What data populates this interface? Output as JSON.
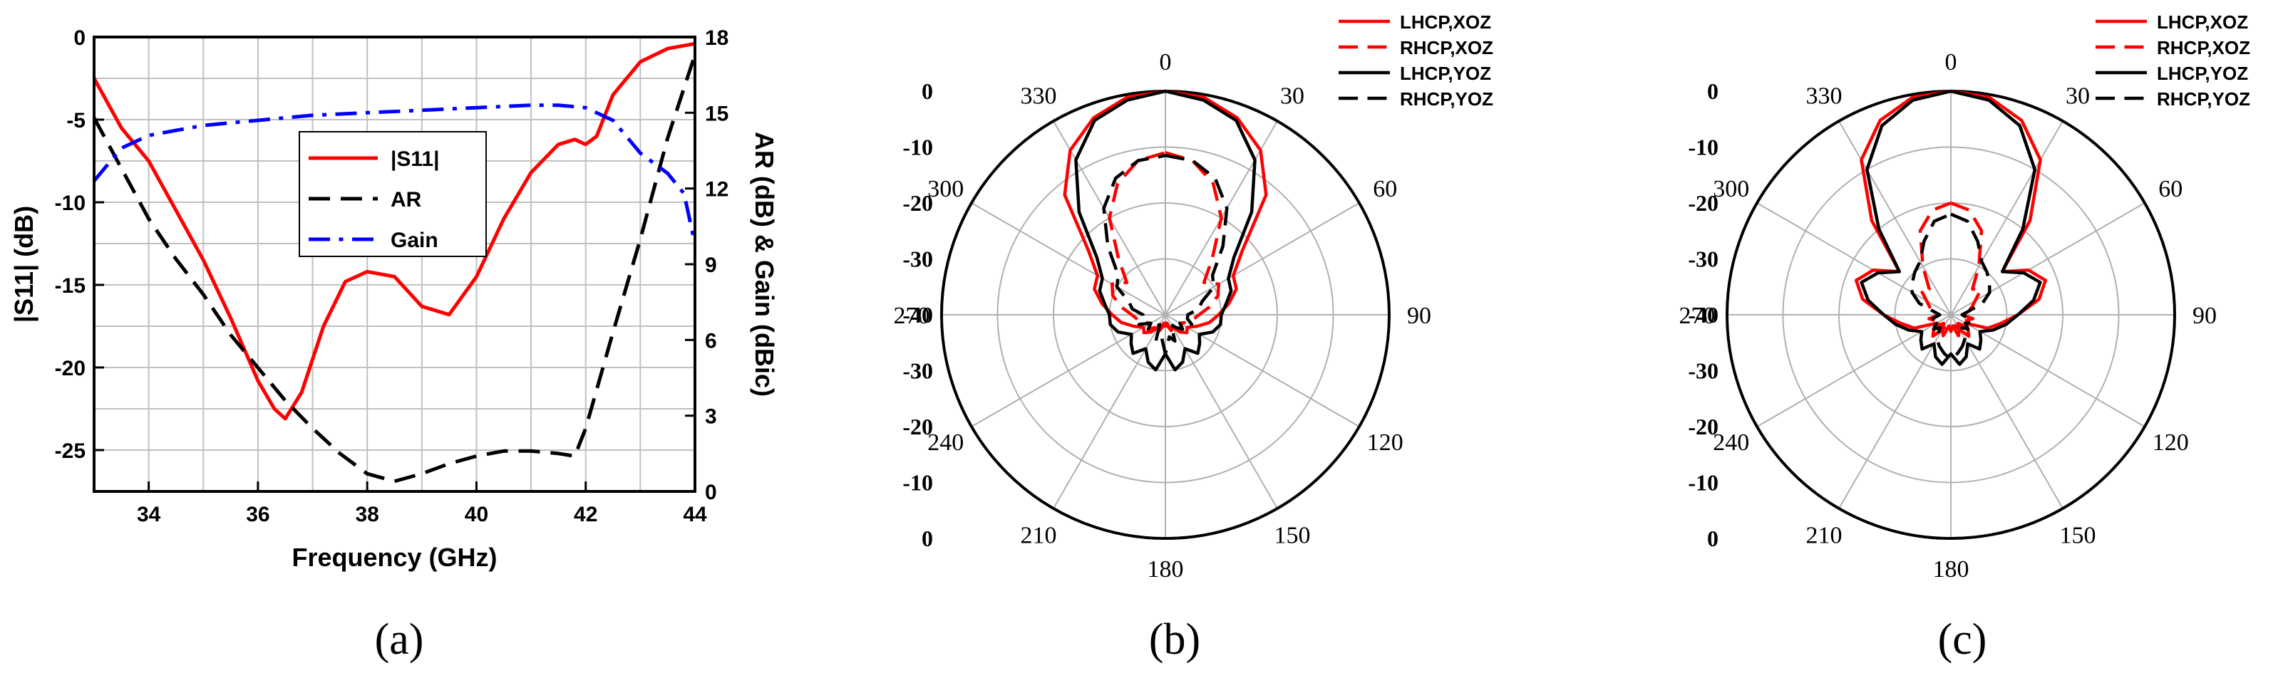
{
  "chart_data": [
    {
      "type": "line",
      "panel_label": "(a)",
      "xlabel": "Frequency (GHz)",
      "ylabel": "|S11| (dB)",
      "ylabel_right": "AR (dB) & Gain (dBic)",
      "xlim": [
        33,
        44
      ],
      "ylim": [
        -27.5,
        0
      ],
      "ylim_right": [
        0,
        18
      ],
      "xticks": [
        34,
        36,
        38,
        40,
        42,
        44
      ],
      "yticks": [
        0,
        -5,
        -10,
        -15,
        -20,
        -25
      ],
      "yticks_right": [
        0,
        3,
        6,
        9,
        12,
        15,
        18
      ],
      "grid": true,
      "legend_position": "center",
      "series": [
        {
          "name": "|S11|",
          "axis": "left",
          "color": "#ff0000",
          "style": "solid",
          "x": [
            33,
            33.5,
            34,
            34.5,
            35,
            35.5,
            36,
            36.3,
            36.5,
            36.8,
            37.2,
            37.6,
            38,
            38.5,
            39,
            39.5,
            40,
            40.5,
            41,
            41.5,
            41.8,
            42,
            42.2,
            42.5,
            43,
            43.5,
            44
          ],
          "y": [
            -2.5,
            -5.5,
            -7.5,
            -10.5,
            -13.5,
            -17,
            -20.8,
            -22.5,
            -23.1,
            -21.5,
            -17.5,
            -14.8,
            -14.2,
            -14.5,
            -16.3,
            -16.8,
            -14.5,
            -11,
            -8.2,
            -6.5,
            -6.2,
            -6.5,
            -6,
            -3.5,
            -1.5,
            -0.7,
            -0.4
          ]
        },
        {
          "name": "AR",
          "axis": "right",
          "color": "#000000",
          "style": "dashed",
          "x": [
            33,
            33.5,
            34,
            34.5,
            35,
            35.5,
            36,
            36.5,
            37,
            37.5,
            38,
            38.5,
            39,
            39.5,
            40,
            40.5,
            41,
            41.5,
            41.8,
            42,
            42.5,
            43,
            43.5,
            44
          ],
          "y": [
            14.8,
            12.8,
            10.8,
            9.2,
            7.8,
            6.2,
            4.9,
            3.6,
            2.5,
            1.5,
            0.7,
            0.4,
            0.7,
            1.1,
            1.4,
            1.6,
            1.6,
            1.5,
            1.4,
            2.5,
            6.3,
            10,
            14,
            17.3
          ]
        },
        {
          "name": "Gain",
          "axis": "right",
          "color": "#0000ff",
          "style": "dashdot",
          "x": [
            33,
            33.5,
            34,
            34.5,
            35,
            35.5,
            36,
            36.5,
            37,
            38,
            39,
            40,
            41,
            41.5,
            42,
            42.5,
            43,
            43.5,
            43.8,
            44
          ],
          "y": [
            12.3,
            13.6,
            14.1,
            14.3,
            14.5,
            14.6,
            14.7,
            14.8,
            14.9,
            15,
            15.1,
            15.2,
            15.3,
            15.3,
            15.2,
            14.7,
            13.4,
            12.6,
            11.8,
            9.8
          ]
        }
      ]
    },
    {
      "type": "polar",
      "panel_label": "(b)",
      "angle_labels": [
        "0",
        "30",
        "60",
        "90",
        "120",
        "150",
        "180",
        "210",
        "240",
        "270",
        "300",
        "330"
      ],
      "radial_labels_top": [
        "0",
        "-10",
        "-20",
        "-30",
        "-40"
      ],
      "radial_labels_bottom": [
        "-30",
        "-20",
        "-10",
        "0"
      ],
      "rlim": [
        -40,
        0
      ],
      "grid": true,
      "legend_position": "top-right",
      "series": [
        {
          "name": "LHCP,XOZ",
          "color": "#ff0000",
          "style": "solid",
          "angles": [
            0,
            10,
            20,
            30,
            40,
            50,
            60,
            70,
            80,
            90,
            100,
            110,
            120,
            130,
            140,
            150,
            160,
            170,
            180,
            190,
            200,
            210,
            220,
            230,
            240,
            250,
            260,
            270,
            280,
            290,
            300,
            310,
            320,
            330,
            340,
            350
          ],
          "r": [
            0,
            -0.5,
            -2.5,
            -6,
            -12,
            -22,
            -26,
            -26.5,
            -28.5,
            -30.5,
            -32,
            -34,
            -35.5,
            -35,
            -36,
            -37.5,
            -37,
            -38.5,
            -38,
            -38.5,
            -37,
            -37.5,
            -36,
            -35,
            -35.5,
            -34,
            -32,
            -30.5,
            -28.5,
            -26.5,
            -26,
            -22,
            -12,
            -6,
            -2.5,
            -0.5
          ]
        },
        {
          "name": "RHCP,XOZ",
          "color": "#ff0000",
          "style": "dashed",
          "angles": [
            0,
            10,
            20,
            30,
            40,
            50,
            60,
            70,
            80,
            90,
            100,
            110,
            120,
            130,
            140,
            150,
            160,
            170,
            180,
            190,
            200,
            210,
            220,
            230,
            240,
            250,
            260,
            270,
            280,
            290,
            300,
            310,
            320,
            330,
            340,
            350
          ],
          "r": [
            -11,
            -12,
            -15,
            -20,
            -27,
            -31,
            -29,
            -30,
            -32,
            -34,
            -35,
            -36,
            -37,
            -36,
            -37,
            -38,
            -37,
            -38,
            -38,
            -38,
            -37,
            -38,
            -37,
            -36,
            -37,
            -36,
            -35,
            -34,
            -32,
            -30,
            -29,
            -31,
            -27,
            -20,
            -15,
            -12
          ]
        },
        {
          "name": "LHCP,YOZ",
          "color": "#000000",
          "style": "solid",
          "angles": [
            0,
            10,
            20,
            30,
            40,
            50,
            60,
            70,
            80,
            90,
            100,
            110,
            120,
            130,
            140,
            150,
            160,
            170,
            180,
            190,
            200,
            210,
            220,
            230,
            240,
            250,
            260,
            270,
            280,
            290,
            300,
            310,
            320,
            330,
            340,
            350
          ],
          "r": [
            0,
            -1,
            -3,
            -8,
            -16,
            -24,
            -27,
            -27.5,
            -29,
            -30,
            -30,
            -31,
            -33,
            -32,
            -31,
            -33,
            -31,
            -30,
            -33,
            -30,
            -31,
            -33,
            -31,
            -32,
            -33,
            -31,
            -30,
            -30,
            -29,
            -27.5,
            -27,
            -24,
            -16,
            -8,
            -3,
            -1
          ]
        },
        {
          "name": "RHCP,YOZ",
          "color": "#000000",
          "style": "dashed",
          "angles": [
            0,
            10,
            20,
            30,
            40,
            50,
            60,
            70,
            80,
            90,
            100,
            110,
            120,
            130,
            140,
            150,
            160,
            170,
            180,
            190,
            200,
            210,
            220,
            230,
            240,
            250,
            260,
            270,
            280,
            290,
            300,
            310,
            320,
            330,
            340,
            350
          ],
          "r": [
            -11.5,
            -12,
            -14,
            -18,
            -24,
            -29,
            -30,
            -33,
            -34,
            -36,
            -36,
            -35,
            -37,
            -36,
            -37,
            -38,
            -35,
            -36,
            -33,
            -36,
            -35,
            -38,
            -37,
            -36,
            -37,
            -35,
            -36,
            -36,
            -34,
            -33,
            -30,
            -29,
            -24,
            -18,
            -14,
            -12
          ]
        }
      ]
    },
    {
      "type": "polar",
      "panel_label": "(c)",
      "angle_labels": [
        "0",
        "30",
        "60",
        "90",
        "120",
        "150",
        "180",
        "210",
        "240",
        "270",
        "300",
        "330"
      ],
      "radial_labels_top": [
        "0",
        "-10",
        "-20",
        "-30",
        "-40"
      ],
      "radial_labels_bottom": [
        "-30",
        "-20",
        "-10",
        "0"
      ],
      "rlim": [
        -40,
        0
      ],
      "grid": true,
      "legend_position": "top-right",
      "series": [
        {
          "name": "LHCP,XOZ",
          "color": "#ff0000",
          "style": "solid",
          "angles": [
            0,
            10,
            20,
            30,
            40,
            50,
            60,
            70,
            80,
            90,
            100,
            110,
            120,
            130,
            140,
            150,
            160,
            170,
            180,
            190,
            200,
            210,
            220,
            230,
            240,
            250,
            260,
            270,
            280,
            290,
            300,
            310,
            320,
            330,
            340,
            350
          ],
          "r": [
            0,
            -0.5,
            -3,
            -8,
            -18,
            -28,
            -24,
            -22,
            -24,
            -28,
            -31,
            -33,
            -37,
            -36,
            -35,
            -37,
            -36,
            -38,
            -37,
            -38,
            -36,
            -37,
            -35,
            -36,
            -37,
            -33,
            -31,
            -28,
            -24,
            -22,
            -24,
            -28,
            -18,
            -8,
            -3,
            -0.5
          ]
        },
        {
          "name": "RHCP,XOZ",
          "color": "#ff0000",
          "style": "dashed",
          "angles": [
            0,
            10,
            20,
            30,
            40,
            50,
            60,
            70,
            80,
            90,
            100,
            110,
            120,
            130,
            140,
            150,
            160,
            170,
            180,
            190,
            200,
            210,
            220,
            230,
            240,
            250,
            260,
            270,
            280,
            290,
            300,
            310,
            320,
            330,
            340,
            350
          ],
          "r": [
            -20,
            -21,
            -24,
            -30,
            -34,
            -33,
            -35,
            -36,
            -37,
            -38,
            -36,
            -37,
            -38,
            -37,
            -38,
            -37,
            -38,
            -38,
            -38,
            -38,
            -38,
            -37,
            -38,
            -37,
            -38,
            -37,
            -36,
            -38,
            -37,
            -36,
            -35,
            -33,
            -34,
            -30,
            -24,
            -21
          ]
        },
        {
          "name": "LHCP,YOZ",
          "color": "#000000",
          "style": "solid",
          "angles": [
            0,
            10,
            20,
            30,
            40,
            50,
            60,
            70,
            80,
            90,
            100,
            110,
            120,
            130,
            140,
            150,
            160,
            170,
            180,
            190,
            200,
            210,
            220,
            230,
            240,
            250,
            260,
            270,
            280,
            290,
            300,
            310,
            320,
            330,
            340,
            350
          ],
          "r": [
            0,
            -1,
            -4,
            -10,
            -20,
            -28,
            -25,
            -23,
            -25,
            -28,
            -30,
            -32,
            -34,
            -33,
            -32,
            -34,
            -32,
            -31,
            -33,
            -31,
            -32,
            -34,
            -32,
            -33,
            -34,
            -32,
            -30,
            -28,
            -25,
            -23,
            -25,
            -28,
            -20,
            -10,
            -4,
            -1
          ]
        },
        {
          "name": "RHCP,YOZ",
          "color": "#000000",
          "style": "dashed",
          "angles": [
            0,
            10,
            20,
            30,
            40,
            50,
            60,
            70,
            80,
            90,
            100,
            110,
            120,
            130,
            140,
            150,
            160,
            170,
            180,
            190,
            200,
            210,
            220,
            230,
            240,
            250,
            260,
            270,
            280,
            290,
            300,
            310,
            320,
            330,
            340,
            350
          ],
          "r": [
            -22,
            -23,
            -26,
            -29,
            -30,
            -31,
            -32,
            -34,
            -37,
            -38,
            -37,
            -36,
            -37,
            -36,
            -37,
            -35,
            -34,
            -33,
            -32,
            -33,
            -34,
            -35,
            -37,
            -36,
            -37,
            -36,
            -37,
            -38,
            -37,
            -34,
            -32,
            -31,
            -30,
            -29,
            -26,
            -23
          ]
        }
      ]
    }
  ]
}
